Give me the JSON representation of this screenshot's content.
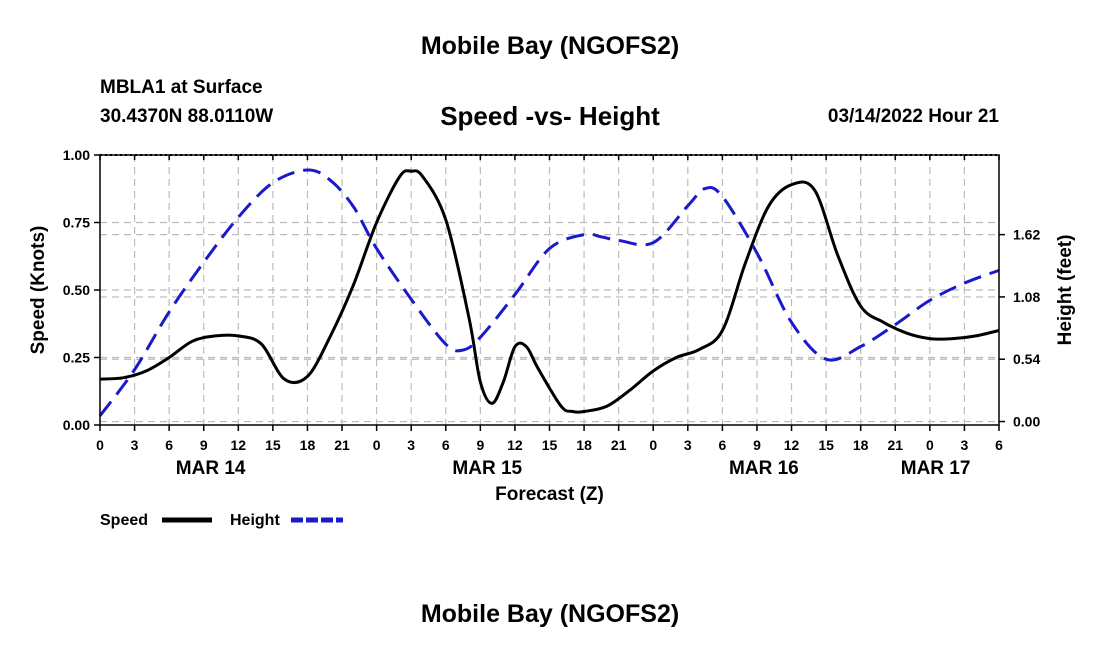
{
  "header": {
    "title": "Mobile Bay (NGOFS2)",
    "station": "MBLA1 at Surface",
    "coords": "30.4370N  88.0110W",
    "subtitle": "Speed -vs- Height",
    "datetime": "03/14/2022 Hour 21"
  },
  "footer": {
    "title": "Mobile Bay (NGOFS2)"
  },
  "chart_data": {
    "type": "line",
    "title": "Speed -vs- Height",
    "xlabel": "Forecast (Z)",
    "ylabel": "Speed (Knots)",
    "y2label": "Height (feet)",
    "xlim": [
      0,
      78
    ],
    "ylim": [
      0,
      1.0
    ],
    "y2lim": [
      -0.03,
      2.31
    ],
    "x_ticks": [
      0,
      3,
      6,
      9,
      12,
      15,
      18,
      21,
      24,
      27,
      30,
      33,
      36,
      39,
      42,
      45,
      48,
      51,
      54,
      57,
      60,
      63,
      66,
      69,
      72,
      75,
      78
    ],
    "x_tick_labels": [
      "0",
      "3",
      "6",
      "9",
      "12",
      "15",
      "18",
      "21",
      "0",
      "3",
      "6",
      "9",
      "12",
      "15",
      "18",
      "21",
      "0",
      "3",
      "6",
      "9",
      "12",
      "15",
      "18",
      "21",
      "0",
      "3",
      "6"
    ],
    "date_labels": [
      {
        "x": 9.6,
        "label": "MAR 14"
      },
      {
        "x": 33.6,
        "label": "MAR 15"
      },
      {
        "x": 57.6,
        "label": "MAR 16"
      },
      {
        "x": 72.5,
        "label": "MAR 17"
      }
    ],
    "y_ticks": [
      0,
      0.25,
      0.5,
      0.75,
      1.0
    ],
    "y_tick_labels": [
      "0.00",
      "0.25",
      "0.50",
      "0.75",
      "1.00"
    ],
    "y2_ticks": [
      0.0,
      0.54,
      1.08,
      1.62
    ],
    "y2_tick_labels": [
      "0.00",
      "0.54",
      "1.08",
      "1.62"
    ],
    "grid": true,
    "legend_position": "bottom-left",
    "series": [
      {
        "name": "Speed",
        "axis": "left",
        "color": "#000000",
        "style": "solid",
        "x": [
          0,
          2,
          4,
          6,
          8,
          10,
          12,
          14,
          16,
          18,
          20,
          22,
          24,
          26,
          27,
          28,
          30,
          32,
          33,
          34,
          35,
          36,
          37,
          38,
          40,
          41,
          42,
          44,
          46,
          48,
          50,
          52,
          54,
          56,
          58,
          60,
          62,
          64,
          66,
          68,
          70,
          72,
          74,
          76,
          78
        ],
        "values": [
          0.17,
          0.175,
          0.2,
          0.25,
          0.31,
          0.33,
          0.33,
          0.3,
          0.17,
          0.18,
          0.33,
          0.52,
          0.75,
          0.92,
          0.94,
          0.92,
          0.76,
          0.4,
          0.16,
          0.08,
          0.16,
          0.29,
          0.29,
          0.21,
          0.07,
          0.05,
          0.05,
          0.07,
          0.13,
          0.2,
          0.25,
          0.28,
          0.35,
          0.6,
          0.81,
          0.89,
          0.87,
          0.63,
          0.44,
          0.38,
          0.34,
          0.32,
          0.32,
          0.33,
          0.35
        ]
      },
      {
        "name": "Height",
        "axis": "right",
        "color": "#1a1acc",
        "style": "dashed",
        "x": [
          0,
          3,
          6,
          9,
          12,
          15,
          18,
          20,
          22,
          24,
          27,
          30,
          31.5,
          33,
          36,
          39,
          42,
          43.5,
          45,
          48,
          51,
          52.5,
          54,
          57,
          60,
          63,
          66,
          69,
          72,
          75,
          78
        ],
        "values": [
          0.05,
          0.45,
          0.95,
          1.38,
          1.77,
          2.07,
          2.18,
          2.09,
          1.86,
          1.5,
          1.06,
          0.67,
          0.62,
          0.73,
          1.1,
          1.5,
          1.62,
          1.6,
          1.57,
          1.55,
          1.87,
          2.02,
          1.95,
          1.46,
          0.86,
          0.54,
          0.65,
          0.84,
          1.05,
          1.2,
          1.31
        ]
      }
    ]
  },
  "legend": {
    "items": [
      {
        "label": "Speed",
        "color": "#000000",
        "style": "solid"
      },
      {
        "label": "Height",
        "color": "#1a1acc",
        "style": "dashed"
      }
    ]
  }
}
